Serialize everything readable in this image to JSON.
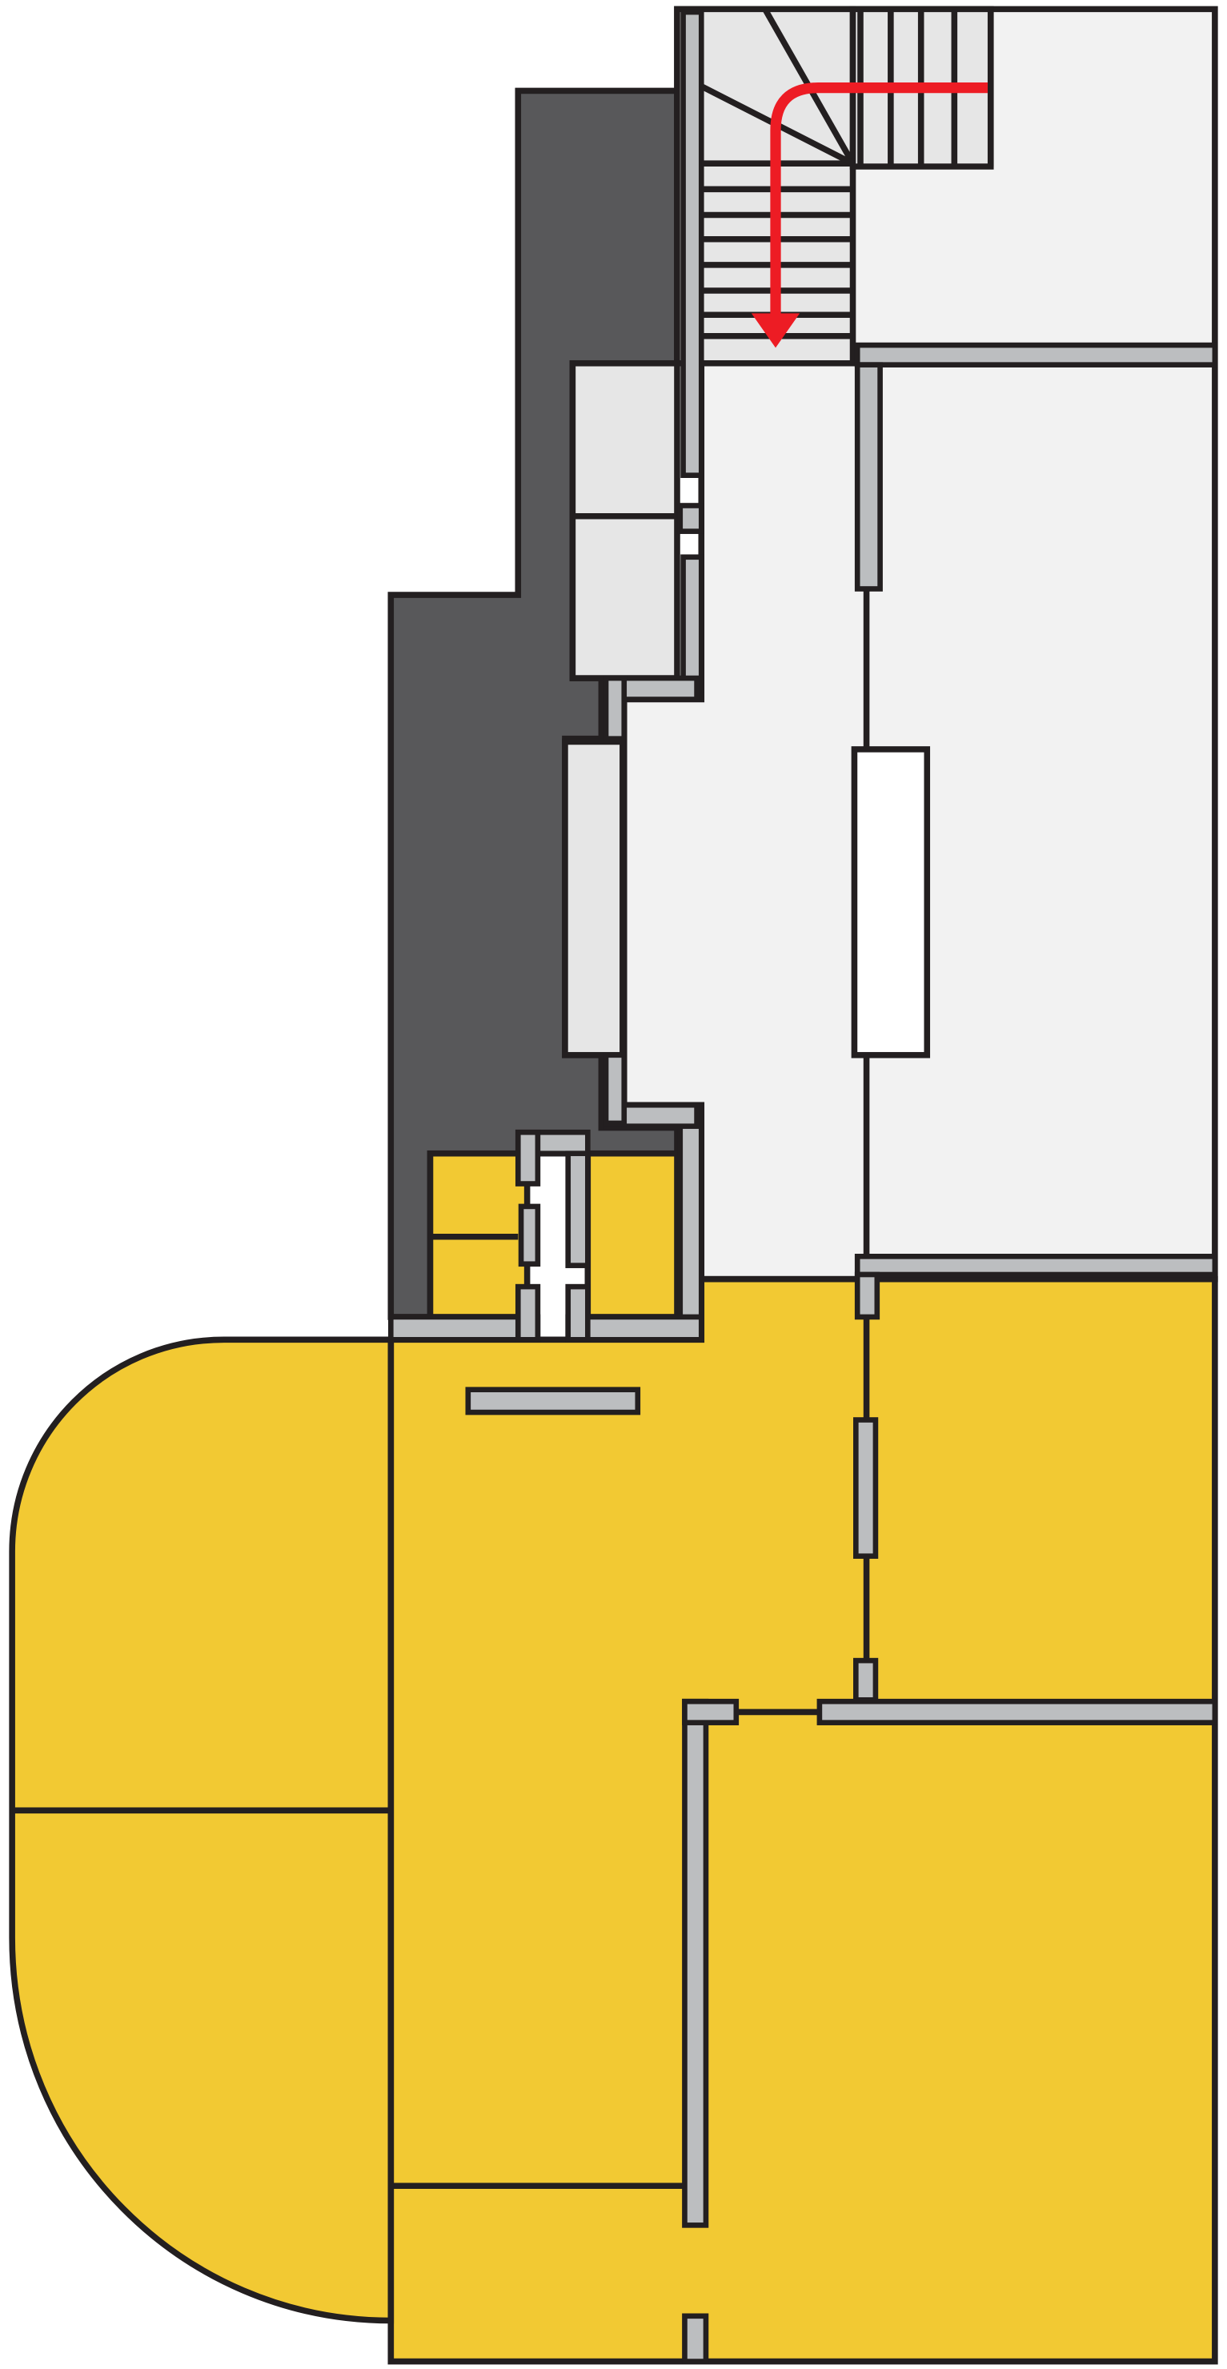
{
  "floorplan": {
    "colors": {
      "highlight_area": "#F2C933",
      "light_rooms": "#F2F2F2",
      "stair_and_closet_fill": "#E6E6E6",
      "dark_block": "#58585A",
      "wall_stroke": "#231F20",
      "wall_fill": "#BCBEC0",
      "route_arrow": "#ED1C24",
      "background": "#FFFFFF"
    },
    "icons": {
      "route_arrow": "arrow-down-icon",
      "stairs": "staircase-icon"
    }
  }
}
